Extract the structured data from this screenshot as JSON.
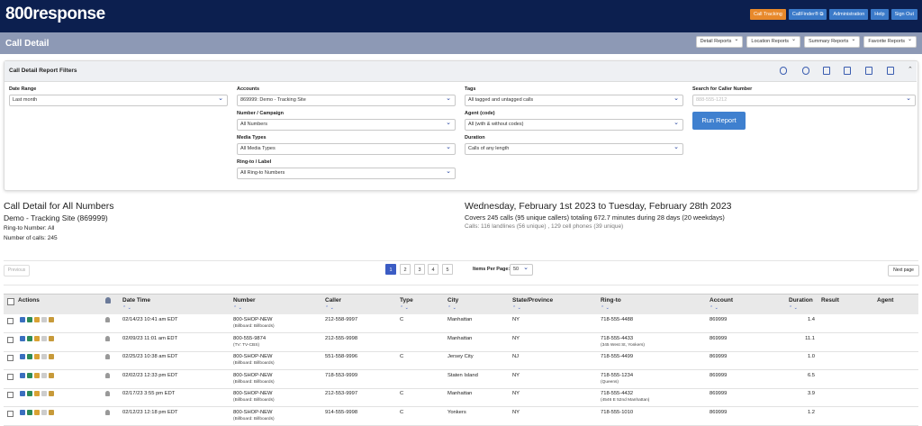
{
  "header": {
    "logo": "800response",
    "nav": [
      "Call Tracking",
      "CallFinder® ⧉",
      "Administration",
      "Help",
      "Sign Out"
    ]
  },
  "subheader": {
    "title": "Call Detail",
    "menus": [
      "Detail Reports",
      "Location Reports",
      "Summary Reports",
      "Favorite Reports"
    ]
  },
  "filters": {
    "title": "Call Detail Report Filters",
    "fields": [
      {
        "label": "Date Range",
        "value": "Last month"
      },
      {
        "label": "Accounts",
        "value": "869999: Demo - Tracking Site"
      },
      {
        "label": "Number / Campaign",
        "value": "All Numbers"
      },
      {
        "label": "Media Types",
        "value": "All Media Types"
      },
      {
        "label": "Ring-to / Label",
        "value": "All Ring-to Numbers"
      },
      {
        "label": "Tags",
        "value": "All tagged and untagged calls"
      },
      {
        "label": "Agent (code)",
        "value": "All (with & without codes)"
      },
      {
        "label": "Duration",
        "value": "Calls of any length"
      }
    ],
    "search": {
      "label": "Search for Caller Number",
      "placeholder": "888-555-1212"
    },
    "button": "Run Report"
  },
  "summary": {
    "title": "Call Detail for All Numbers",
    "account": "Demo - Tracking Site (869999)",
    "ring_to": "Ring-to Number: All",
    "calls": "Number of calls: 245",
    "date_range": "Wednesday, February 1st 2023 to Tuesday, February 28th 2023",
    "totals": "Covers 245 calls (95 unique callers) totaling 672.7 minutes during 28 days (20 weekdays)",
    "breakdown": "Calls: 116 landlines (56 unique) , 129 cell phones (39 unique)"
  },
  "pagination": {
    "previous": "Previous",
    "pages": [
      "1",
      "2",
      "3",
      "4",
      "5"
    ],
    "items_label": "Items Per Page:",
    "items_value": "50",
    "next": "Next page"
  },
  "table": {
    "columns": [
      "Actions",
      "Date Time",
      "Number",
      "Caller",
      "Type",
      "City",
      "State/Province",
      "Ring-to",
      "Account",
      "Duration",
      "Result",
      "Agent"
    ],
    "rows": [
      {
        "date": "02/14/23 10:41 am EDT",
        "number": "800-SHOP-NEW",
        "number_label": "(Billboard: Billboards)",
        "caller": "212-558-9997",
        "type": "C",
        "city": "Manhattan",
        "state": "NY",
        "ring_to": "718-555-4488",
        "account": "869999",
        "duration": "1.4"
      },
      {
        "date": "02/09/23 11:01 am EDT",
        "number": "800-555-9874",
        "number_label": "(TV: TV-CBS)",
        "caller": "212-555-9998",
        "city": "Manhattan",
        "state": "NY",
        "ring_to": "718-555-4433",
        "ring_to_label": "(345 West St, Yonkers)",
        "account": "869999",
        "duration": "11.1"
      },
      {
        "date": "02/25/23 10:38 am EDT",
        "number": "800-SHOP-NEW",
        "number_label": "(Billboard: Billboards)",
        "caller": "551-558-9996",
        "type": "C",
        "city": "Jersey City",
        "state": "NJ",
        "ring_to": "718-555-4499",
        "account": "869999",
        "duration": "1.0"
      },
      {
        "date": "02/02/23 12:33 pm EDT",
        "number": "800-SHOP-NEW",
        "number_label": "(Billboard: Billboards)",
        "caller": "718-553-9999",
        "city": "Staten Island",
        "state": "NY",
        "ring_to": "718-555-1234",
        "ring_to_label": "(Queens)",
        "account": "869999",
        "duration": "6.5"
      },
      {
        "date": "02/17/23 3:55 pm EDT",
        "number": "800-SHOP-NEW",
        "number_label": "(Billboard: Billboards)",
        "caller": "212-553-9997",
        "type": "C",
        "city": "Manhattan",
        "state": "NY",
        "ring_to": "718-555-4432",
        "ring_to_label": "(4546 E 52nd Manhattan)",
        "account": "869999",
        "duration": "3.9"
      },
      {
        "date": "02/12/23 12:18 pm EDT",
        "number": "800-SHOP-NEW",
        "number_label": "(Billboard: Billboards)",
        "caller": "914-555-9998",
        "type": "C",
        "city": "Yonkers",
        "state": "NY",
        "ring_to": "718-555-1010",
        "account": "869999",
        "duration": "1.2"
      }
    ]
  }
}
